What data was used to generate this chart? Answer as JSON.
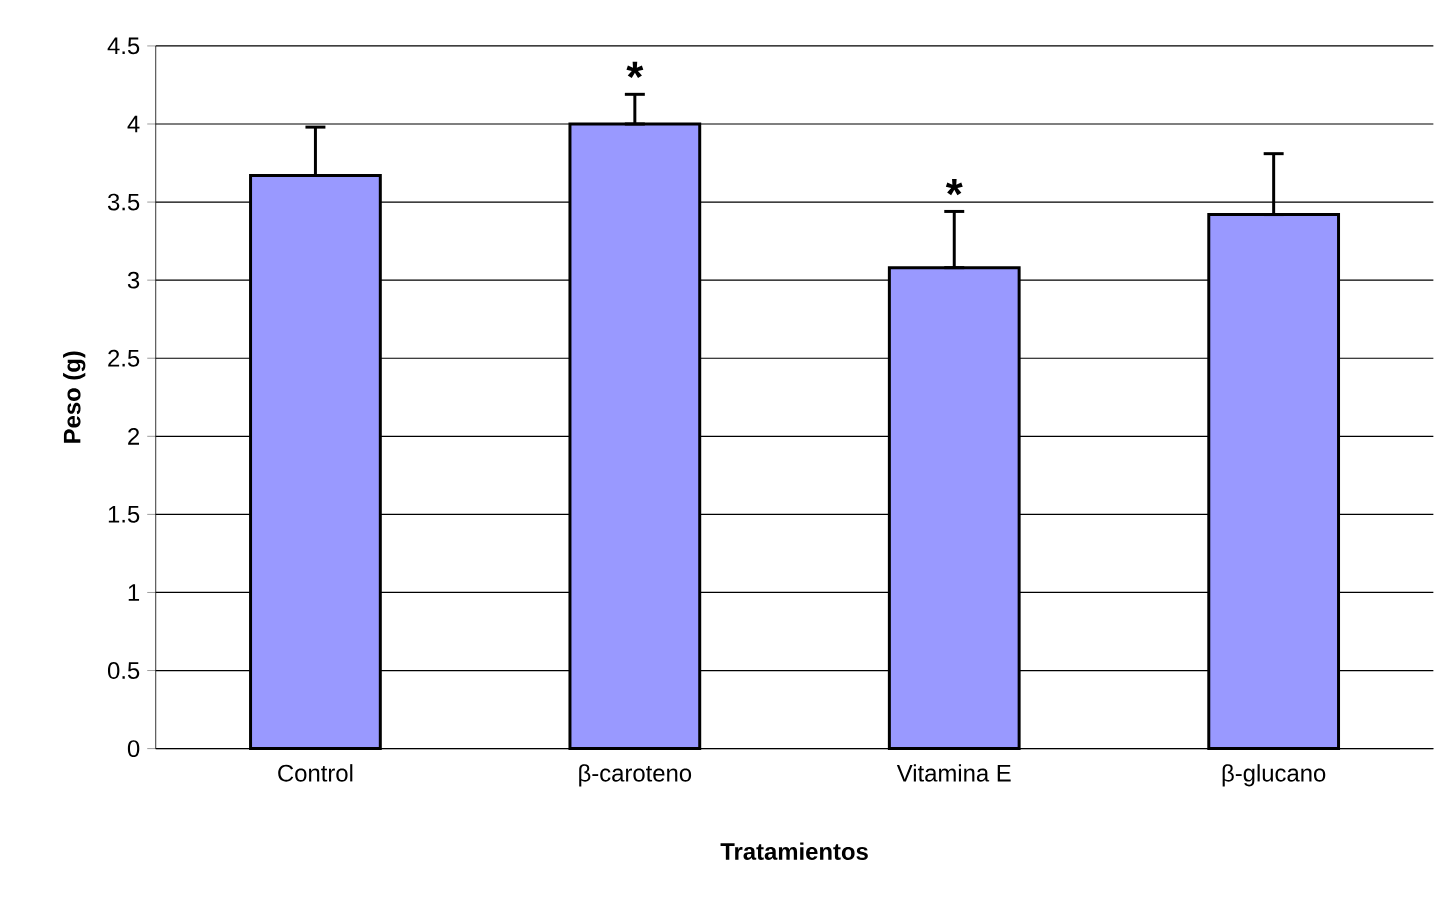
{
  "chart_data": {
    "type": "bar",
    "xlabel": "Tratamientos",
    "ylabel": "Peso (g)",
    "categories": [
      "Control",
      "β-caroteno",
      "Vitamina E",
      "β-glucano"
    ],
    "values": [
      3.67,
      4.0,
      3.08,
      3.42
    ],
    "errors": [
      [
        3.67,
        3.98
      ],
      [
        4.0,
        4.19
      ],
      [
        3.08,
        3.44
      ],
      [
        3.42,
        3.81
      ]
    ],
    "color": "#9999ff",
    "ylim": [
      0,
      4.5
    ],
    "yticks": [
      0,
      0.5,
      1,
      1.5,
      2,
      2.5,
      3,
      3.5,
      4,
      4.5
    ],
    "grid": "y",
    "annotations": [
      {
        "text": "*",
        "x": "β-caroteno",
        "y": 4.19
      },
      {
        "text": "*",
        "x": "Vitamina E",
        "y": 3.44
      }
    ]
  }
}
